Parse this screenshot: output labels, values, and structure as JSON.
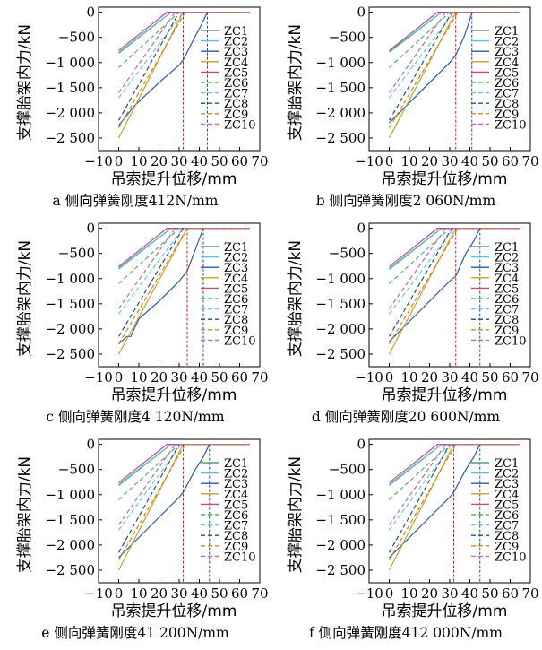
{
  "figure": {
    "ylabel": "支撑胎架内力/kN",
    "xlabel": "吊索提升位移/mm",
    "xticks": [
      "−10",
      "0",
      "10",
      "20",
      "30",
      "40",
      "50",
      "60",
      "70"
    ],
    "yticks": [
      "0",
      "−500",
      "−1 000",
      "−1 500",
      "−2 000",
      "−2 500"
    ],
    "legend": [
      "ZC1",
      "ZC2",
      "ZC3",
      "ZC4",
      "ZC5",
      "ZC6",
      "ZC7",
      "ZC8",
      "ZC9",
      "ZC10"
    ],
    "series_colors": [
      "#5aa469",
      "#5bc0de",
      "#2b5aa8",
      "#c9a227",
      "#c04a8c",
      "#59b36a",
      "#6cc5e8",
      "#1f4e9c",
      "#d9831f",
      "#c96aa8"
    ],
    "series_styles": [
      "solid",
      "solid",
      "solid",
      "solid",
      "solid",
      "dashed",
      "dashed",
      "dashed",
      "dashed",
      "dashed"
    ],
    "panels": [
      {
        "caption": "a 侧向弹簧刚度412N/mm"
      },
      {
        "caption": "b 侧向弹簧刚度2 060N/mm"
      },
      {
        "caption": "c 侧向弹簧刚度4 120N/mm"
      },
      {
        "caption": "d 侧向弹簧刚度20 600N/mm"
      },
      {
        "caption": "e 侧向弹簧刚度41 200N/mm"
      },
      {
        "caption": "f 侧向弹簧刚度412 000N/mm"
      }
    ]
  },
  "chart_data": [
    {
      "type": "line",
      "xlim": [
        -10,
        70
      ],
      "ylim": [
        -2750,
        100
      ],
      "ylabel": "支撑胎架内力/kN",
      "xlabel": "吊索提升位移/mm",
      "vlines": [
        {
          "x": 32,
          "color": "#c81e1e"
        },
        {
          "x": 44,
          "color": "#1f4e9c"
        }
      ],
      "series": [
        {
          "name": "ZC1",
          "x": [
            0,
            26,
            65
          ],
          "values": [
            -800,
            0,
            0
          ]
        },
        {
          "name": "ZC2",
          "x": [
            0,
            26,
            65
          ],
          "values": [
            -820,
            0,
            0
          ]
        },
        {
          "name": "ZC3",
          "x": [
            0,
            8,
            20,
            30,
            32,
            37,
            41,
            44,
            65
          ],
          "values": [
            -2250,
            -1850,
            -1400,
            -1050,
            -950,
            -550,
            -250,
            0,
            0
          ]
        },
        {
          "name": "ZC4",
          "x": [
            0,
            32,
            65
          ],
          "values": [
            -2500,
            0,
            0
          ]
        },
        {
          "name": "ZC5",
          "x": [
            0,
            24,
            65
          ],
          "values": [
            -760,
            0,
            0
          ]
        },
        {
          "name": "ZC6",
          "x": [
            0,
            30,
            65
          ],
          "values": [
            -1100,
            0,
            0
          ]
        },
        {
          "name": "ZC7",
          "x": [
            0,
            32,
            65
          ],
          "values": [
            -1700,
            0,
            0
          ]
        },
        {
          "name": "ZC8",
          "x": [
            0,
            30,
            65
          ],
          "values": [
            -2150,
            0,
            0
          ]
        },
        {
          "name": "ZC9",
          "x": [
            0,
            33,
            65
          ],
          "values": [
            -2300,
            0,
            0
          ]
        },
        {
          "name": "ZC10",
          "x": [
            0,
            28,
            65
          ],
          "values": [
            -1600,
            0,
            0
          ]
        }
      ]
    },
    {
      "type": "line",
      "xlim": [
        -10,
        70
      ],
      "ylim": [
        -2750,
        100
      ],
      "ylabel": "支撑胎架内力/kN",
      "xlabel": "吊索提升位移/mm",
      "vlines": [
        {
          "x": 33,
          "color": "#c81e1e"
        },
        {
          "x": 41,
          "color": "#1f4e9c"
        }
      ],
      "series": [
        {
          "name": "ZC1",
          "x": [
            0,
            26,
            65
          ],
          "values": [
            -780,
            0,
            0
          ]
        },
        {
          "name": "ZC2",
          "x": [
            0,
            26,
            65
          ],
          "values": [
            -800,
            0,
            0
          ]
        },
        {
          "name": "ZC3",
          "x": [
            0,
            10,
            20,
            30,
            33,
            37,
            40,
            41,
            65
          ],
          "values": [
            -2200,
            -1800,
            -1400,
            -1000,
            -850,
            -500,
            -150,
            0,
            0
          ]
        },
        {
          "name": "ZC4",
          "x": [
            0,
            33,
            65
          ],
          "values": [
            -2500,
            0,
            0
          ]
        },
        {
          "name": "ZC5",
          "x": [
            0,
            24,
            65
          ],
          "values": [
            -760,
            0,
            0
          ]
        },
        {
          "name": "ZC6",
          "x": [
            0,
            30,
            65
          ],
          "values": [
            -1100,
            0,
            0
          ]
        },
        {
          "name": "ZC7",
          "x": [
            0,
            32,
            65
          ],
          "values": [
            -1700,
            0,
            0
          ]
        },
        {
          "name": "ZC8",
          "x": [
            0,
            31,
            65
          ],
          "values": [
            -2150,
            0,
            0
          ]
        },
        {
          "name": "ZC9",
          "x": [
            0,
            34,
            65
          ],
          "values": [
            -2300,
            0,
            0
          ]
        },
        {
          "name": "ZC10",
          "x": [
            0,
            28,
            65
          ],
          "values": [
            -1600,
            0,
            0
          ]
        }
      ]
    },
    {
      "type": "line",
      "xlim": [
        -10,
        70
      ],
      "ylim": [
        -2750,
        100
      ],
      "ylabel": "支撑胎架内力/kN",
      "xlabel": "吊索提升位移/mm",
      "vlines": [
        {
          "x": 34,
          "color": "#c81e1e"
        },
        {
          "x": 42,
          "color": "#1f4e9c"
        }
      ],
      "series": [
        {
          "name": "ZC1",
          "x": [
            0,
            26,
            65
          ],
          "values": [
            -790,
            0,
            0
          ]
        },
        {
          "name": "ZC2",
          "x": [
            0,
            26,
            65
          ],
          "values": [
            -810,
            0,
            0
          ]
        },
        {
          "name": "ZC3",
          "x": [
            0,
            4,
            6,
            10,
            20,
            30,
            34,
            42,
            65
          ],
          "values": [
            -2300,
            -2150,
            -2150,
            -1800,
            -1450,
            -1050,
            -850,
            0,
            0
          ]
        },
        {
          "name": "ZC4",
          "x": [
            0,
            34,
            65
          ],
          "values": [
            -2500,
            0,
            0
          ]
        },
        {
          "name": "ZC5",
          "x": [
            0,
            24,
            65
          ],
          "values": [
            -760,
            0,
            0
          ]
        },
        {
          "name": "ZC6",
          "x": [
            0,
            30,
            65
          ],
          "values": [
            -1100,
            0,
            0
          ]
        },
        {
          "name": "ZC7",
          "x": [
            0,
            32,
            65
          ],
          "values": [
            -1700,
            0,
            0
          ]
        },
        {
          "name": "ZC8",
          "x": [
            0,
            32,
            65
          ],
          "values": [
            -2150,
            0,
            0
          ]
        },
        {
          "name": "ZC9",
          "x": [
            0,
            34,
            65
          ],
          "values": [
            -2300,
            0,
            0
          ]
        },
        {
          "name": "ZC10",
          "x": [
            0,
            28,
            65
          ],
          "values": [
            -1600,
            0,
            0
          ]
        }
      ]
    },
    {
      "type": "line",
      "xlim": [
        -10,
        70
      ],
      "ylim": [
        -2750,
        100
      ],
      "ylabel": "支撑胎架内力/kN",
      "xlabel": "吊索提升位移/mm",
      "vlines": [
        {
          "x": 33,
          "color": "#c81e1e"
        },
        {
          "x": 45,
          "color": "#1f4e9c"
        }
      ],
      "series": [
        {
          "name": "ZC1",
          "x": [
            0,
            26,
            65
          ],
          "values": [
            -800,
            0,
            0
          ]
        },
        {
          "name": "ZC2",
          "x": [
            0,
            26,
            65
          ],
          "values": [
            -820,
            0,
            0
          ]
        },
        {
          "name": "ZC3",
          "x": [
            0,
            10,
            20,
            30,
            33,
            38,
            42,
            45,
            65
          ],
          "values": [
            -2250,
            -1850,
            -1450,
            -1050,
            -950,
            -500,
            -250,
            0,
            0
          ]
        },
        {
          "name": "ZC4",
          "x": [
            0,
            33,
            65
          ],
          "values": [
            -2500,
            0,
            0
          ]
        },
        {
          "name": "ZC5",
          "x": [
            0,
            24,
            65
          ],
          "values": [
            -760,
            0,
            0
          ]
        },
        {
          "name": "ZC6",
          "x": [
            0,
            30,
            65
          ],
          "values": [
            -1100,
            0,
            0
          ]
        },
        {
          "name": "ZC7",
          "x": [
            0,
            32,
            65
          ],
          "values": [
            -1700,
            0,
            0
          ]
        },
        {
          "name": "ZC8",
          "x": [
            0,
            31,
            65
          ],
          "values": [
            -2150,
            0,
            0
          ]
        },
        {
          "name": "ZC9",
          "x": [
            0,
            34,
            65
          ],
          "values": [
            -2300,
            0,
            0
          ]
        },
        {
          "name": "ZC10",
          "x": [
            0,
            28,
            65
          ],
          "values": [
            -1600,
            0,
            0
          ]
        }
      ]
    },
    {
      "type": "line",
      "xlim": [
        -10,
        70
      ],
      "ylim": [
        -2750,
        100
      ],
      "ylabel": "支撑胎架内力/kN",
      "xlabel": "吊索提升位移/mm",
      "vlines": [
        {
          "x": 32,
          "color": "#c81e1e"
        },
        {
          "x": 45,
          "color": "#1f4e9c"
        }
      ],
      "series": [
        {
          "name": "ZC1",
          "x": [
            0,
            26,
            65
          ],
          "values": [
            -800,
            0,
            0
          ]
        },
        {
          "name": "ZC2",
          "x": [
            0,
            26,
            65
          ],
          "values": [
            -820,
            0,
            0
          ]
        },
        {
          "name": "ZC3",
          "x": [
            0,
            10,
            20,
            30,
            32,
            38,
            42,
            45,
            65
          ],
          "values": [
            -2250,
            -1850,
            -1450,
            -1050,
            -950,
            -500,
            -250,
            0,
            0
          ]
        },
        {
          "name": "ZC4",
          "x": [
            0,
            32,
            65
          ],
          "values": [
            -2500,
            0,
            0
          ]
        },
        {
          "name": "ZC5",
          "x": [
            0,
            24,
            65
          ],
          "values": [
            -760,
            0,
            0
          ]
        },
        {
          "name": "ZC6",
          "x": [
            0,
            30,
            65
          ],
          "values": [
            -1100,
            0,
            0
          ]
        },
        {
          "name": "ZC7",
          "x": [
            0,
            31,
            65
          ],
          "values": [
            -1700,
            0,
            0
          ]
        },
        {
          "name": "ZC8",
          "x": [
            0,
            30,
            65
          ],
          "values": [
            -2150,
            0,
            0
          ]
        },
        {
          "name": "ZC9",
          "x": [
            0,
            33,
            65
          ],
          "values": [
            -2300,
            0,
            0
          ]
        },
        {
          "name": "ZC10",
          "x": [
            0,
            28,
            65
          ],
          "values": [
            -1600,
            0,
            0
          ]
        }
      ]
    },
    {
      "type": "line",
      "xlim": [
        -10,
        70
      ],
      "ylim": [
        -2750,
        100
      ],
      "ylabel": "支撑胎架内力/kN",
      "xlabel": "吊索提升位移/mm",
      "vlines": [
        {
          "x": 32,
          "color": "#c81e1e"
        },
        {
          "x": 45,
          "color": "#1f4e9c"
        }
      ],
      "series": [
        {
          "name": "ZC1",
          "x": [
            0,
            26,
            65
          ],
          "values": [
            -800,
            0,
            0
          ]
        },
        {
          "name": "ZC2",
          "x": [
            0,
            26,
            65
          ],
          "values": [
            -820,
            0,
            0
          ]
        },
        {
          "name": "ZC3",
          "x": [
            0,
            10,
            20,
            30,
            32,
            38,
            42,
            45,
            65
          ],
          "values": [
            -2250,
            -1850,
            -1450,
            -1050,
            -950,
            -500,
            -250,
            0,
            0
          ]
        },
        {
          "name": "ZC4",
          "x": [
            0,
            32,
            65
          ],
          "values": [
            -2500,
            0,
            0
          ]
        },
        {
          "name": "ZC5",
          "x": [
            0,
            24,
            65
          ],
          "values": [
            -760,
            0,
            0
          ]
        },
        {
          "name": "ZC6",
          "x": [
            0,
            30,
            65
          ],
          "values": [
            -1100,
            0,
            0
          ]
        },
        {
          "name": "ZC7",
          "x": [
            0,
            31,
            65
          ],
          "values": [
            -1700,
            0,
            0
          ]
        },
        {
          "name": "ZC8",
          "x": [
            0,
            30,
            65
          ],
          "values": [
            -2150,
            0,
            0
          ]
        },
        {
          "name": "ZC9",
          "x": [
            0,
            33,
            65
          ],
          "values": [
            -2300,
            0,
            0
          ]
        },
        {
          "name": "ZC10",
          "x": [
            0,
            28,
            65
          ],
          "values": [
            -1600,
            0,
            0
          ]
        }
      ]
    }
  ]
}
